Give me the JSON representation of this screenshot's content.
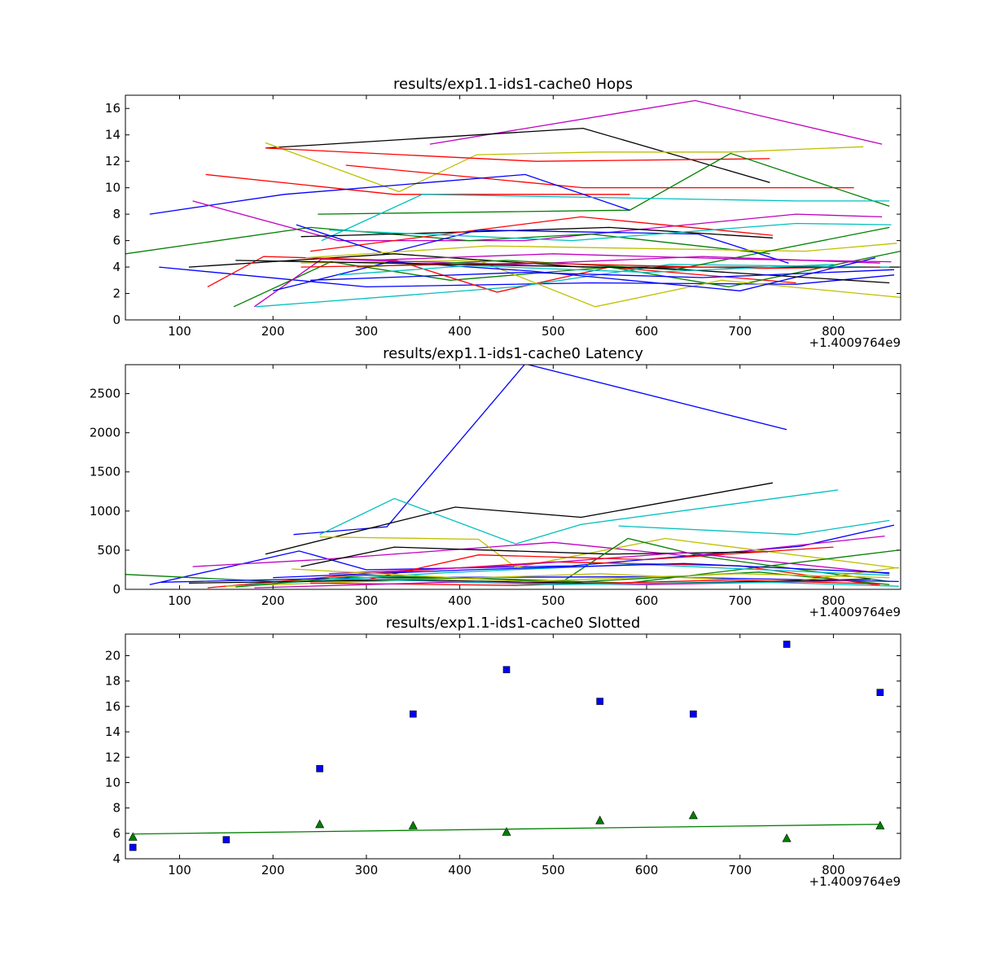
{
  "colors": {
    "b": "#0000ff",
    "g": "#007f00",
    "r": "#ff0000",
    "c": "#00bfbf",
    "m": "#bf00bf",
    "y": "#bfbf00",
    "k": "#000000"
  },
  "chart_data": [
    {
      "type": "line",
      "title": "results/exp1.1-ids1-cache0 Hops",
      "xlabel": "",
      "ylabel": "",
      "x_offset_label": "+1.4009764e9",
      "xlim": [
        42,
        872
      ],
      "ylim": [
        0,
        17
      ],
      "xticks": [
        100,
        200,
        300,
        400,
        500,
        600,
        700,
        800
      ],
      "yticks": [
        0,
        2,
        4,
        6,
        8,
        10,
        12,
        14,
        16
      ],
      "grid": false,
      "series": [
        {
          "color": "m",
          "x": [
            368,
            652,
            852
          ],
          "y": [
            13.3,
            16.6,
            13.3
          ]
        },
        {
          "color": "k",
          "x": [
            192,
            532,
            732
          ],
          "y": [
            13.0,
            14.5,
            10.4
          ]
        },
        {
          "color": "y",
          "x": [
            192,
            335,
            418,
            548,
            690,
            832
          ],
          "y": [
            13.4,
            9.7,
            12.5,
            12.7,
            12.7,
            13.1
          ]
        },
        {
          "color": "r",
          "x": [
            192,
            482,
            732
          ],
          "y": [
            13.0,
            12.0,
            12.2
          ]
        },
        {
          "color": "r",
          "x": [
            278,
            532,
            822
          ],
          "y": [
            11.7,
            10.0,
            10.0
          ]
        },
        {
          "color": "g",
          "x": [
            248,
            582,
            690,
            860
          ],
          "y": [
            8.0,
            8.3,
            12.6,
            8.6
          ]
        },
        {
          "color": "r",
          "x": [
            128,
            330,
            582
          ],
          "y": [
            11.0,
            9.5,
            9.5
          ]
        },
        {
          "color": "b",
          "x": [
            68,
            212,
            470,
            582
          ],
          "y": [
            8.0,
            9.5,
            11.0,
            8.3
          ]
        },
        {
          "color": "c",
          "x": [
            252,
            360,
            760,
            860
          ],
          "y": [
            6.0,
            9.5,
            9.0,
            9.0
          ]
        },
        {
          "color": "m",
          "x": [
            114,
            270,
            470,
            760,
            852
          ],
          "y": [
            9.0,
            6.0,
            6.0,
            8.0,
            7.8
          ]
        },
        {
          "color": "g",
          "x": [
            42,
            240,
            410,
            540,
            732
          ],
          "y": [
            5.0,
            7.0,
            6.0,
            6.5,
            5.0
          ]
        },
        {
          "color": "b",
          "x": [
            78,
            300,
            540,
            760,
            865
          ],
          "y": [
            4.0,
            2.5,
            2.8,
            2.7,
            3.4
          ]
        },
        {
          "color": "k",
          "x": [
            110,
            330,
            532,
            732,
            870
          ],
          "y": [
            4.0,
            5.0,
            4.0,
            4.0,
            4.0
          ]
        },
        {
          "color": "r",
          "x": [
            130,
            190,
            332,
            440,
            560,
            760
          ],
          "y": [
            2.5,
            4.8,
            4.5,
            2.1,
            4.0,
            2.8
          ]
        },
        {
          "color": "g",
          "x": [
            158,
            262,
            390,
            560,
            688,
            872
          ],
          "y": [
            1.0,
            4.4,
            3.0,
            4.0,
            2.5,
            5.2
          ]
        },
        {
          "color": "y",
          "x": [
            230,
            420,
            545,
            680,
            872
          ],
          "y": [
            4.3,
            4.5,
            1.0,
            3.0,
            1.7
          ]
        },
        {
          "color": "c",
          "x": [
            182,
            460,
            625,
            860
          ],
          "y": [
            1.0,
            2.5,
            4.2,
            4.0
          ]
        },
        {
          "color": "m",
          "x": [
            180,
            252,
            460,
            660,
            850
          ],
          "y": [
            1.0,
            4.6,
            4.2,
            4.8,
            4.3
          ]
        },
        {
          "color": "b",
          "x": [
            200,
            325,
            475,
            700,
            845
          ],
          "y": [
            2.2,
            4.4,
            3.7,
            2.2,
            4.7
          ]
        },
        {
          "color": "k",
          "x": [
            230,
            430,
            560,
            735
          ],
          "y": [
            6.3,
            6.7,
            7.0,
            6.2
          ]
        },
        {
          "color": "r",
          "x": [
            240,
            530,
            735
          ],
          "y": [
            5.2,
            7.8,
            6.4
          ]
        },
        {
          "color": "b",
          "x": [
            225,
            320,
            420,
            655,
            752
          ],
          "y": [
            7.2,
            5.0,
            6.8,
            6.5,
            4.3
          ]
        },
        {
          "color": "y",
          "x": [
            235,
            430,
            770,
            868
          ],
          "y": [
            4.7,
            5.6,
            5.2,
            5.8
          ]
        },
        {
          "color": "c",
          "x": [
            260,
            520,
            760,
            862
          ],
          "y": [
            6.8,
            6.0,
            7.3,
            7.2
          ]
        },
        {
          "color": "g",
          "x": [
            290,
            450,
            630,
            860
          ],
          "y": [
            4.0,
            4.5,
            3.8,
            7.0
          ]
        },
        {
          "color": "m",
          "x": [
            300,
            500,
            700,
            862
          ],
          "y": [
            4.5,
            5.0,
            4.6,
            4.4
          ]
        },
        {
          "color": "r",
          "x": [
            230,
            480,
            720,
            850
          ],
          "y": [
            4.0,
            4.3,
            3.9,
            4.0
          ]
        },
        {
          "color": "k",
          "x": [
            160,
            400,
            620,
            860
          ],
          "y": [
            4.5,
            4.2,
            3.9,
            2.8
          ]
        },
        {
          "color": "b",
          "x": [
            240,
            470,
            660,
            865
          ],
          "y": [
            3.0,
            3.6,
            3.2,
            3.8
          ]
        },
        {
          "color": "c",
          "x": [
            270,
            410,
            600,
            800
          ],
          "y": [
            3.4,
            4.1,
            3.6,
            4.2
          ]
        }
      ]
    },
    {
      "type": "line",
      "title": "results/exp1.1-ids1-cache0 Latency",
      "xlabel": "",
      "ylabel": "",
      "x_offset_label": "+1.4009764e9",
      "xlim": [
        42,
        872
      ],
      "ylim": [
        0,
        2870
      ],
      "xticks": [
        100,
        200,
        300,
        400,
        500,
        600,
        700,
        800
      ],
      "yticks": [
        0,
        500,
        1000,
        1500,
        2000,
        2500
      ],
      "grid": false,
      "series": [
        {
          "color": "b",
          "x": [
            222,
            322,
            470,
            750
          ],
          "y": [
            700,
            800,
            2880,
            2040
          ]
        },
        {
          "color": "k",
          "x": [
            192,
            395,
            530,
            735
          ],
          "y": [
            450,
            1050,
            920,
            1360
          ]
        },
        {
          "color": "c",
          "x": [
            250,
            330,
            460,
            530,
            805
          ],
          "y": [
            700,
            1160,
            580,
            830,
            1270
          ]
        },
        {
          "color": "b",
          "x": [
            68,
            228,
            300,
            520,
            765,
            865
          ],
          "y": [
            60,
            490,
            250,
            300,
            550,
            820
          ]
        },
        {
          "color": "m",
          "x": [
            114,
            250,
            500,
            650,
            855
          ],
          "y": [
            290,
            380,
            600,
            420,
            680
          ]
        },
        {
          "color": "y",
          "x": [
            250,
            420,
            460,
            620,
            870
          ],
          "y": [
            670,
            640,
            280,
            650,
            270
          ]
        },
        {
          "color": "c",
          "x": [
            570,
            760,
            860
          ],
          "y": [
            810,
            700,
            880
          ]
        },
        {
          "color": "g",
          "x": [
            42,
            200,
            400,
            580,
            870
          ],
          "y": [
            190,
            100,
            150,
            80,
            500
          ]
        },
        {
          "color": "k",
          "x": [
            230,
            330,
            560,
            730
          ],
          "y": [
            290,
            540,
            450,
            480
          ]
        },
        {
          "color": "r",
          "x": [
            130,
            300,
            500,
            700,
            850
          ],
          "y": [
            20,
            200,
            350,
            300,
            50
          ]
        },
        {
          "color": "g",
          "x": [
            510,
            580,
            660,
            860
          ],
          "y": [
            100,
            650,
            420,
            100
          ]
        },
        {
          "color": "b",
          "x": [
            80,
            300,
            600,
            870
          ],
          "y": [
            90,
            150,
            160,
            100
          ]
        },
        {
          "color": "m",
          "x": [
            260,
            450,
            640,
            860
          ],
          "y": [
            200,
            300,
            470,
            200
          ]
        },
        {
          "color": "y",
          "x": [
            150,
            350,
            550,
            750,
            870
          ],
          "y": [
            40,
            120,
            200,
            90,
            280
          ]
        },
        {
          "color": "r",
          "x": [
            300,
            420,
            600,
            800
          ],
          "y": [
            120,
            440,
            380,
            540
          ]
        },
        {
          "color": "c",
          "x": [
            170,
            380,
            590,
            860
          ],
          "y": [
            50,
            210,
            320,
            180
          ]
        },
        {
          "color": "k",
          "x": [
            110,
            350,
            580,
            840
          ],
          "y": [
            80,
            120,
            70,
            130
          ]
        },
        {
          "color": "g",
          "x": [
            160,
            300,
            520,
            720,
            860
          ],
          "y": [
            30,
            180,
            90,
            220,
            60
          ]
        },
        {
          "color": "b",
          "x": [
            200,
            410,
            640,
            860
          ],
          "y": [
            150,
            250,
            330,
            210
          ]
        },
        {
          "color": "r",
          "x": [
            240,
            460,
            690,
            850
          ],
          "y": [
            80,
            50,
            120,
            70
          ]
        },
        {
          "color": "m",
          "x": [
            180,
            390,
            600,
            820
          ],
          "y": [
            20,
            90,
            60,
            110
          ]
        },
        {
          "color": "y",
          "x": [
            220,
            470,
            700,
            860
          ],
          "y": [
            260,
            100,
            200,
            150
          ]
        },
        {
          "color": "c",
          "x": [
            260,
            500,
            730,
            870
          ],
          "y": [
            140,
            60,
            90,
            40
          ]
        }
      ]
    },
    {
      "type": "scatter",
      "title": "results/exp1.1-ids1-cache0 Slotted",
      "xlabel": "",
      "ylabel": "",
      "x_offset_label": "+1.4009764e9",
      "xlim": [
        42,
        872
      ],
      "ylim": [
        4,
        21.7
      ],
      "xticks": [
        100,
        200,
        300,
        400,
        500,
        600,
        700,
        800
      ],
      "yticks": [
        4,
        6,
        8,
        10,
        12,
        14,
        16,
        18,
        20
      ],
      "grid": false,
      "series": [
        {
          "marker": "square",
          "color": "b",
          "x": [
            50,
            150,
            250,
            350,
            450,
            550,
            650,
            750,
            850
          ],
          "y": [
            4.9,
            5.5,
            11.1,
            15.4,
            18.9,
            16.4,
            15.4,
            20.9,
            17.1
          ]
        },
        {
          "marker": "triangle",
          "color": "g",
          "x": [
            50,
            250,
            350,
            450,
            550,
            650,
            750,
            850
          ],
          "y": [
            5.7,
            6.7,
            6.6,
            6.1,
            7.0,
            7.4,
            5.6,
            6.6
          ]
        },
        {
          "marker": "none",
          "color": "g",
          "x": [
            50,
            850
          ],
          "y": [
            5.95,
            6.72
          ]
        }
      ]
    }
  ]
}
